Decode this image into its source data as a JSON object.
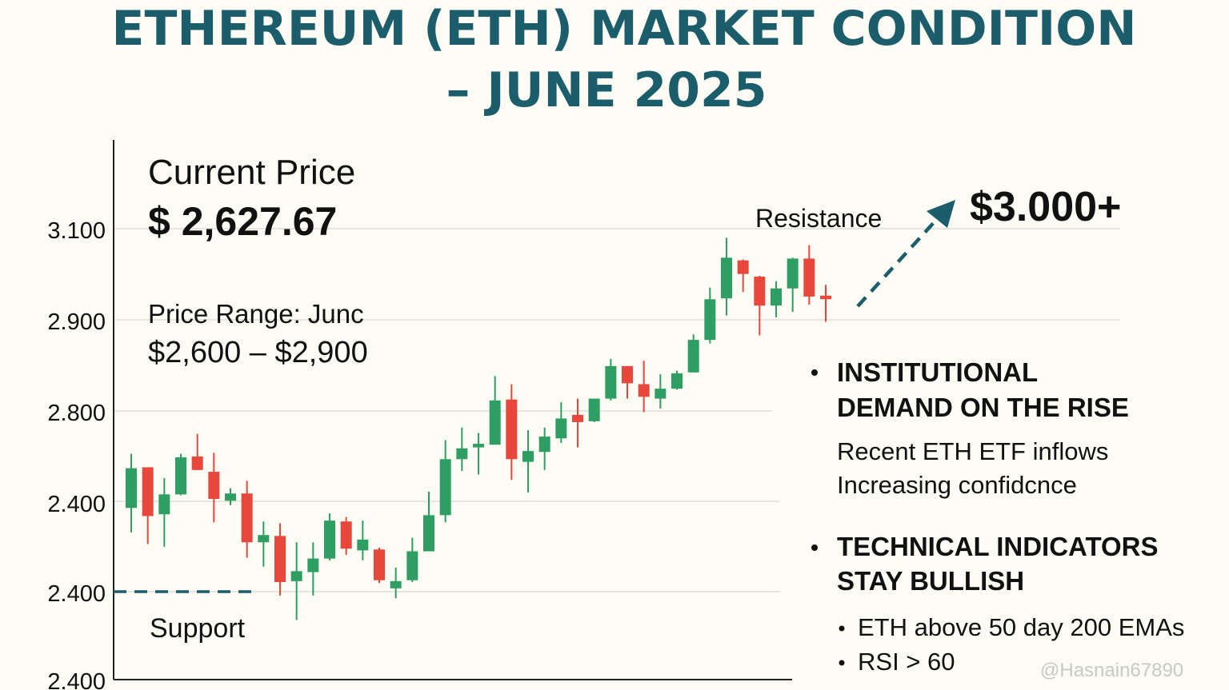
{
  "chart_data": {
    "type": "candlestick",
    "title": [
      "ETHEREUM (ETH) MARKET CONDITION",
      "– JUNE 2025"
    ],
    "ytick_labels": [
      "3.100",
      "2.900",
      "2.800",
      "2.400",
      "2.400",
      "2.400"
    ],
    "ylim": [
      2600,
      3200
    ],
    "categories": [
      null,
      null,
      null,
      null,
      null,
      null,
      null,
      null,
      null,
      null,
      null,
      null,
      null,
      null,
      null,
      null,
      null,
      null,
      null,
      null,
      null,
      null,
      null,
      null,
      null,
      null,
      null,
      null,
      null,
      null,
      null,
      null,
      null,
      null,
      null,
      null,
      null,
      null,
      null,
      null,
      null,
      null,
      null
    ],
    "open": [
      2790,
      2835,
      2783,
      2805,
      2847,
      2830,
      2798,
      2806,
      2752,
      2759,
      2709,
      2719,
      2734,
      2775,
      2743,
      2744,
      2701,
      2710,
      2742,
      2782,
      2844,
      2857,
      2860,
      2910,
      2841,
      2852,
      2867,
      2893,
      2886,
      2911,
      2947,
      2927,
      2911,
      2922,
      2940,
      2976,
      3022,
      3064,
      3046,
      3014,
      3033,
      3066,
      3025
    ],
    "high": [
      2850,
      2835,
      2823,
      2850,
      2872,
      2851,
      2812,
      2820,
      2775,
      2773,
      2752,
      2752,
      2784,
      2780,
      2776,
      2746,
      2724,
      2757,
      2808,
      2865,
      2879,
      2873,
      2936,
      2927,
      2876,
      2879,
      2907,
      2911,
      2911,
      2955,
      2947,
      2953,
      2938,
      2942,
      2982,
      3034,
      3089,
      3065,
      3047,
      3041,
      3067,
      3081,
      3037
    ],
    "low": [
      2763,
      2750,
      2747,
      2804,
      2832,
      2774,
      2793,
      2735,
      2725,
      2693,
      2666,
      2693,
      2732,
      2738,
      2732,
      2707,
      2690,
      2708,
      2742,
      2774,
      2831,
      2827,
      2860,
      2821,
      2807,
      2832,
      2862,
      2857,
      2885,
      2909,
      2911,
      2896,
      2900,
      2921,
      2940,
      2972,
      3003,
      3029,
      2981,
      3001,
      3007,
      3015,
      2996
    ],
    "close": [
      2834,
      2781,
      2805,
      2846,
      2832,
      2800,
      2806,
      2752,
      2760,
      2708,
      2720,
      2734,
      2776,
      2745,
      2755,
      2710,
      2709,
      2742,
      2782,
      2844,
      2856,
      2861,
      2909,
      2844,
      2853,
      2869,
      2889,
      2885,
      2911,
      2947,
      2928,
      2913,
      2922,
      2939,
      2976,
      3021,
      3067,
      3049,
      3014,
      3033,
      3066,
      3024,
      3021
    ],
    "up_color": "#2e9e63",
    "down_color": "#e8473c",
    "grid": true,
    "annotations": {
      "current_price_label": "Current Price",
      "current_price": "$ 2,627.67",
      "price_range_label": "Price Range: Junc",
      "price_range": "$2,600 – $2,900",
      "resistance": "Resistance",
      "target": "$3.000+",
      "support": "Support"
    },
    "insights": [
      {
        "heading": [
          "INSTITUTIONAL",
          "DEMAND ON THE RISE"
        ],
        "lines": [
          "Recent ETH ETF inflows",
          "Increasing confidcnce"
        ]
      },
      {
        "heading": [
          "TECHNICAL INDICATORS",
          "STAY BULLISH"
        ],
        "bullets": [
          "ETH above 50 day 200 EMAs",
          "RSI > 60"
        ]
      }
    ],
    "watermark": "@Hasnain67890"
  }
}
